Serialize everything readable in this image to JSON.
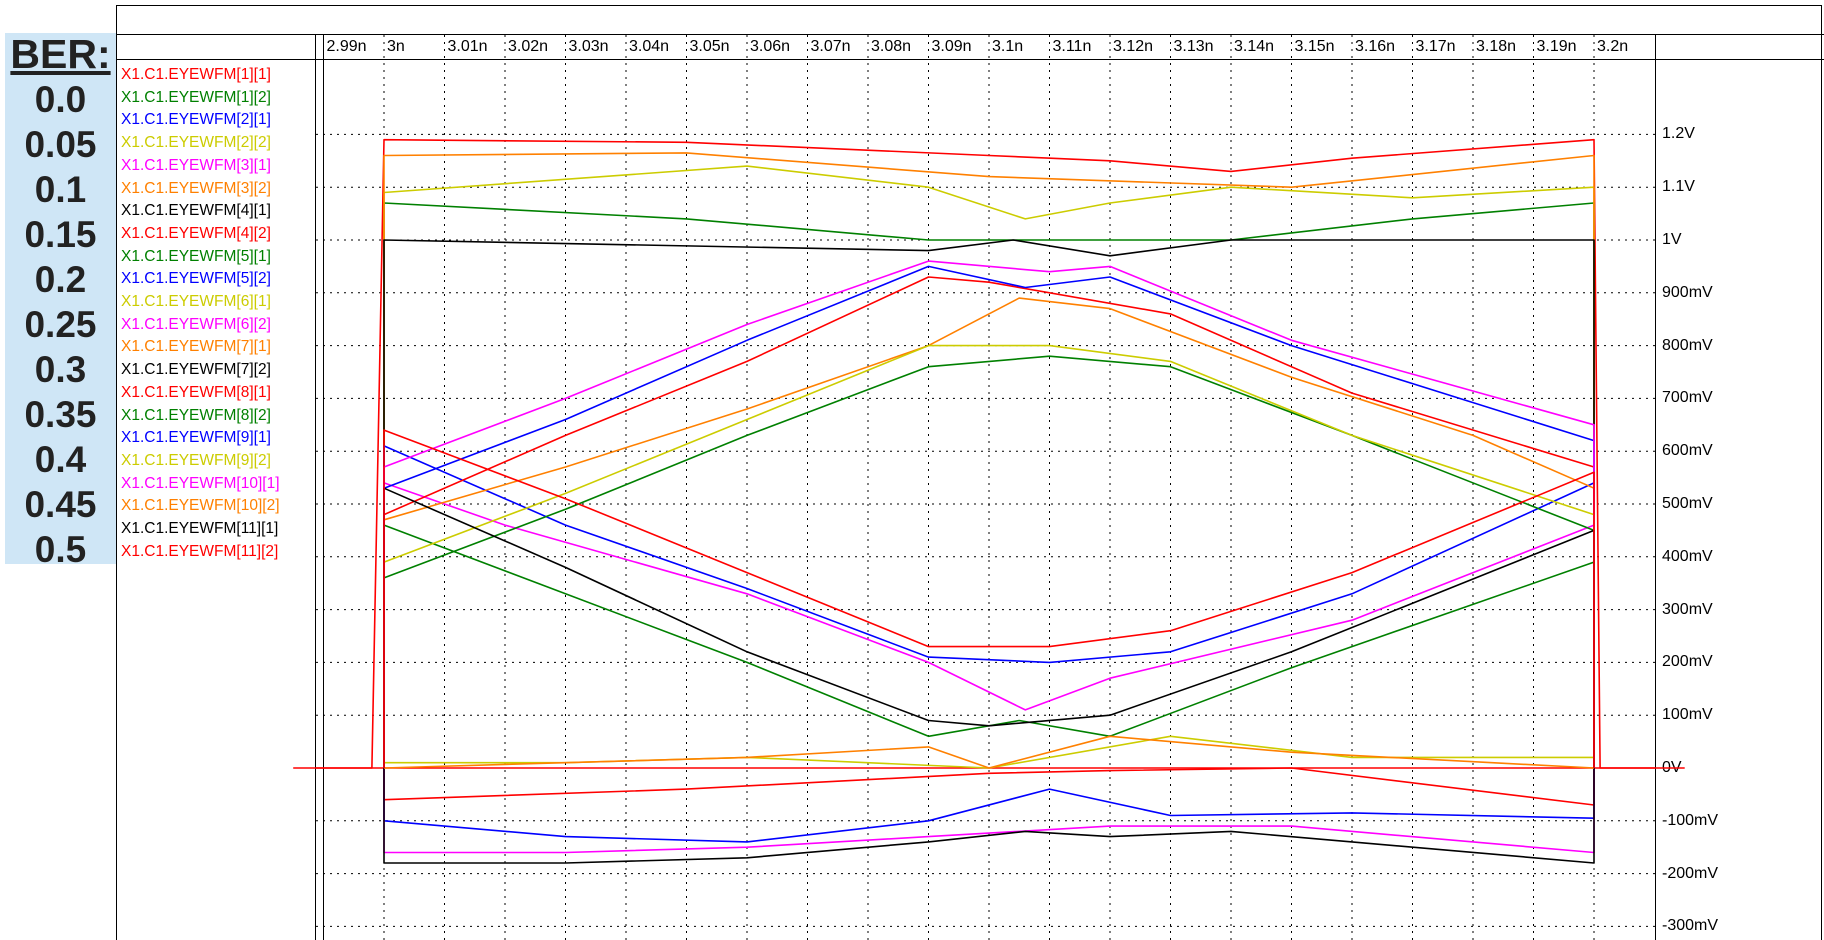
{
  "ber": {
    "title": "BER:",
    "values": [
      "0.0",
      "0.05",
      "0.1",
      "0.15",
      "0.2",
      "0.25",
      "0.3",
      "0.35",
      "0.4",
      "0.45",
      "0.5"
    ]
  },
  "chart_data": {
    "type": "line",
    "title": "",
    "xlabel": "",
    "ylabel": "",
    "x_ticks": [
      "2.99n",
      "3n",
      "3.01n",
      "3.02n",
      "3.03n",
      "3.04n",
      "3.05n",
      "3.06n",
      "3.07n",
      "3.08n",
      "3.09n",
      "3.1n",
      "3.11n",
      "3.12n",
      "3.13n",
      "3.14n",
      "3.15n",
      "3.16n",
      "3.17n",
      "3.18n",
      "3.19n",
      "3.2n"
    ],
    "y_ticks": [
      "1.2V",
      "1.1V",
      "1V",
      "900mV",
      "800mV",
      "700mV",
      "600mV",
      "500mV",
      "400mV",
      "300mV",
      "200mV",
      "100mV",
      "0V",
      "-100mV",
      "-200mV",
      "-300mV"
    ],
    "xlim_ns": [
      2.989,
      3.211
    ],
    "ylim_mV": [
      -300,
      1200
    ],
    "grid": true,
    "legend_position": "left",
    "x_units": "ns",
    "y_units": "mV",
    "series": [
      {
        "name": "X1.C1.EYEWFM[1][1]",
        "color": "#ff0000",
        "x": [
          2.985,
          2.998,
          3.0,
          3.05,
          3.1,
          3.12,
          3.14,
          3.16,
          3.2,
          3.201,
          3.215
        ],
        "y": [
          0,
          0,
          1190,
          1185,
          1160,
          1150,
          1130,
          1155,
          1190,
          0,
          0
        ]
      },
      {
        "name": "X1.C1.EYEWFM[1][2]",
        "color": "#008000",
        "x": [
          3.0,
          3.05,
          3.09,
          3.11,
          3.14,
          3.17,
          3.2
        ],
        "y": [
          1070,
          1040,
          1000,
          1000,
          1000,
          1040,
          1070
        ]
      },
      {
        "name": "X1.C1.EYEWFM[2][1]",
        "color": "#0000ff",
        "x": [
          3.0,
          3.03,
          3.06,
          3.09,
          3.11,
          3.13,
          3.16,
          3.2
        ],
        "y": [
          -100,
          -130,
          -140,
          -100,
          -40,
          -90,
          -85,
          -95
        ]
      },
      {
        "name": "X1.C1.EYEWFM[2][2]",
        "color": "#cccc00",
        "x": [
          3.0,
          3.06,
          3.09,
          3.106,
          3.12,
          3.14,
          3.17,
          3.2
        ],
        "y": [
          1090,
          1140,
          1100,
          1040,
          1070,
          1100,
          1080,
          1100
        ]
      },
      {
        "name": "X1.C1.EYEWFM[3][1]",
        "color": "#ff00ff",
        "x": [
          3.0,
          3.02,
          3.06,
          3.09,
          3.106,
          3.12,
          3.16,
          3.2
        ],
        "y": [
          540,
          460,
          330,
          200,
          110,
          170,
          280,
          460
        ]
      },
      {
        "name": "X1.C1.EYEWFM[3][2]",
        "color": "#ff8000",
        "x": [
          3.0,
          3.05,
          3.1,
          3.15,
          3.2
        ],
        "y": [
          1160,
          1165,
          1120,
          1100,
          1160
        ]
      },
      {
        "name": "X1.C1.EYEWFM[4][1]",
        "color": "#000000",
        "x": [
          3.0,
          3.09,
          3.104,
          3.12,
          3.14,
          3.17,
          3.2
        ],
        "y": [
          1000,
          980,
          1000,
          970,
          1000,
          1000,
          1000
        ]
      },
      {
        "name": "X1.C1.EYEWFM[4][2]",
        "color": "#ff0000",
        "x": [
          3.0,
          3.05,
          3.1,
          3.12,
          3.15,
          3.2
        ],
        "y": [
          -60,
          -40,
          -10,
          -5,
          0,
          -70
        ]
      },
      {
        "name": "X1.C1.EYEWFM[5][1]",
        "color": "#008000",
        "x": [
          3.0,
          3.03,
          3.06,
          3.09,
          3.105,
          3.12,
          3.15,
          3.2
        ],
        "y": [
          460,
          330,
          200,
          60,
          90,
          60,
          190,
          390
        ]
      },
      {
        "name": "X1.C1.EYEWFM[5][2]",
        "color": "#0000ff",
        "x": [
          3.0,
          3.03,
          3.06,
          3.09,
          3.11,
          3.13,
          3.16,
          3.2
        ],
        "y": [
          610,
          460,
          340,
          210,
          200,
          220,
          330,
          540
        ]
      },
      {
        "name": "X1.C1.EYEWFM[6][1]",
        "color": "#cccc00",
        "x": [
          3.0,
          3.03,
          3.06,
          3.1,
          3.13,
          3.16,
          3.2
        ],
        "y": [
          10,
          10,
          20,
          0,
          60,
          20,
          20
        ]
      },
      {
        "name": "X1.C1.EYEWFM[6][2]",
        "color": "#ff00ff",
        "x": [
          3.0,
          3.03,
          3.06,
          3.09,
          3.12,
          3.15,
          3.2
        ],
        "y": [
          -160,
          -160,
          -150,
          -130,
          -110,
          -110,
          -160
        ]
      },
      {
        "name": "X1.C1.EYEWFM[7][1]",
        "color": "#ff8000",
        "x": [
          3.0,
          3.03,
          3.06,
          3.09,
          3.105,
          3.12,
          3.15,
          3.18,
          3.2
        ],
        "y": [
          470,
          570,
          680,
          800,
          890,
          870,
          740,
          630,
          530
        ]
      },
      {
        "name": "X1.C1.EYEWFM[7][2]",
        "color": "#000000",
        "x": [
          3.0,
          3.03,
          3.06,
          3.09,
          3.106,
          3.12,
          3.14,
          3.16,
          3.2
        ],
        "y": [
          -180,
          -180,
          -170,
          -140,
          -120,
          -130,
          -120,
          -140,
          -180
        ]
      },
      {
        "name": "X1.C1.EYEWFM[8][1]",
        "color": "#ff0000",
        "x": [
          3.0,
          3.03,
          3.06,
          3.09,
          3.1,
          3.13,
          3.16,
          3.2
        ],
        "y": [
          480,
          630,
          770,
          930,
          920,
          860,
          710,
          570
        ]
      },
      {
        "name": "X1.C1.EYEWFM[8][2]",
        "color": "#008000",
        "x": [
          3.0,
          3.03,
          3.06,
          3.09,
          3.11,
          3.13,
          3.16,
          3.2
        ],
        "y": [
          360,
          490,
          630,
          760,
          780,
          760,
          630,
          450
        ]
      },
      {
        "name": "X1.C1.EYEWFM[9][1]",
        "color": "#0000ff",
        "x": [
          3.0,
          3.03,
          3.06,
          3.09,
          3.106,
          3.12,
          3.15,
          3.2
        ],
        "y": [
          530,
          660,
          810,
          950,
          910,
          930,
          800,
          620
        ]
      },
      {
        "name": "X1.C1.EYEWFM[9][2]",
        "color": "#cccc00",
        "x": [
          3.0,
          3.03,
          3.06,
          3.09,
          3.11,
          3.13,
          3.16,
          3.2
        ],
        "y": [
          390,
          520,
          660,
          800,
          800,
          770,
          630,
          480
        ]
      },
      {
        "name": "X1.C1.EYEWFM[10][1]",
        "color": "#ff00ff",
        "x": [
          3.0,
          3.03,
          3.06,
          3.09,
          3.11,
          3.12,
          3.15,
          3.2
        ],
        "y": [
          570,
          700,
          840,
          960,
          940,
          950,
          810,
          650
        ]
      },
      {
        "name": "X1.C1.EYEWFM[10][2]",
        "color": "#ff8000",
        "x": [
          3.0,
          3.03,
          3.06,
          3.09,
          3.1,
          3.12,
          3.15,
          3.2
        ],
        "y": [
          0,
          10,
          20,
          40,
          0,
          60,
          30,
          0
        ]
      },
      {
        "name": "X1.C1.EYEWFM[11][1]",
        "color": "#000000",
        "x": [
          3.0,
          3.03,
          3.06,
          3.09,
          3.1,
          3.12,
          3.15,
          3.2
        ],
        "y": [
          530,
          380,
          220,
          90,
          80,
          100,
          220,
          450
        ]
      },
      {
        "name": "X1.C1.EYEWFM[11][2]",
        "color": "#ff0000",
        "x": [
          3.0,
          3.03,
          3.06,
          3.09,
          3.11,
          3.13,
          3.16,
          3.2
        ],
        "y": [
          640,
          510,
          370,
          230,
          230,
          260,
          370,
          560
        ]
      }
    ]
  }
}
